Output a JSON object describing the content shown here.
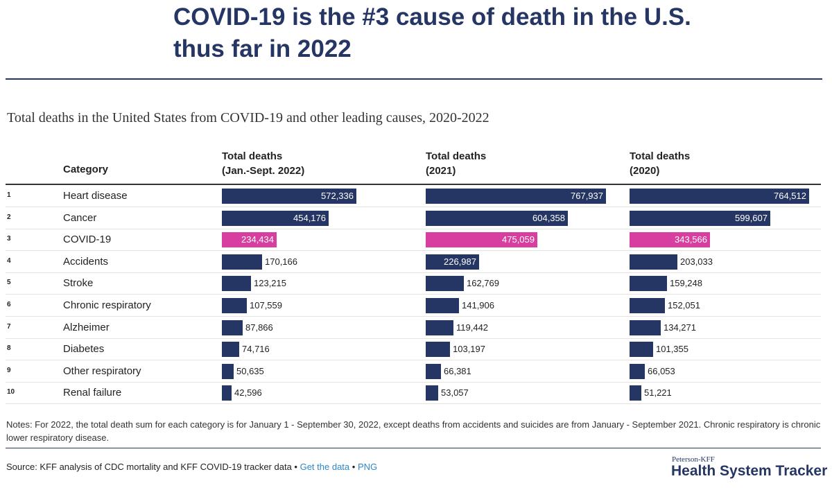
{
  "headline_line1": "COVID-19 is the #3 cause of death in the U.S.",
  "headline_line2": "thus far in 2022",
  "colors": {
    "navy": "#253664",
    "highlight": "#d83e9f"
  },
  "chart_data": {
    "type": "bar",
    "orientation": "horizontal",
    "title": "Total deaths in the United States from COVID-19 and other leading causes, 2020-2022",
    "category_header": "Category",
    "categories": [
      "Heart disease",
      "Cancer",
      "COVID-19",
      "Accidents",
      "Stroke",
      "Chronic respiratory",
      "Alzheimer",
      "Diabetes",
      "Other respiratory",
      "Renal failure"
    ],
    "ranks": [
      "1",
      "2",
      "3",
      "4",
      "5",
      "6",
      "7",
      "8",
      "9",
      "10"
    ],
    "highlighted_category": "COVID-19",
    "series": [
      {
        "name_line1": "Total deaths",
        "name_line2": "(Jan.-Sept. 2022)",
        "values": [
          572336,
          454176,
          234434,
          170166,
          123215,
          107559,
          87866,
          74716,
          50635,
          42596
        ]
      },
      {
        "name_line1": "Total deaths",
        "name_line2": "(2021)",
        "values": [
          767937,
          604358,
          475059,
          226987,
          162769,
          141906,
          119442,
          103197,
          66381,
          53057
        ]
      },
      {
        "name_line1": "Total deaths",
        "name_line2": "(2020)",
        "values": [
          764512,
          599607,
          343566,
          203033,
          159248,
          152051,
          134271,
          101355,
          66053,
          51221
        ]
      }
    ],
    "scale_max": 767937
  },
  "notes": "Notes: For 2022, the total death sum for each category is for January 1 - September 30, 2022, except deaths from accidents and suicides are from January - September 2021. Chronic respiratory is chronic lower respiratory disease.",
  "footer": {
    "source": "Source: KFF analysis of CDC mortality and KFF COVID-19 tracker data",
    "separator": " • ",
    "get_data_link": "Get the data",
    "png_link": "PNG",
    "logo_small": "Peterson-KFF",
    "logo_big": "Health System Tracker"
  }
}
